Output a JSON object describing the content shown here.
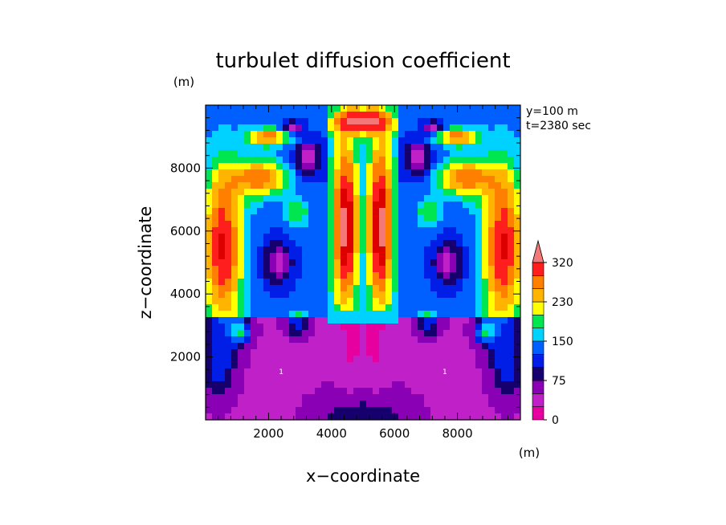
{
  "chart_data": {
    "type": "heatmap",
    "title": "turbulet diffusion coefficient",
    "xlabel": "x−coordinate",
    "ylabel": "z−coordinate",
    "x_unit": "(m)",
    "z_unit": "(m)",
    "annotations": [
      "y=100  m",
      "t=2380 sec"
    ],
    "xlim": [
      0,
      10000
    ],
    "zlim": [
      0,
      10000
    ],
    "x_ticks": [
      2000,
      4000,
      6000,
      8000
    ],
    "z_ticks": [
      2000,
      4000,
      6000,
      8000
    ],
    "x_tick_labels": [
      "2000",
      "4000",
      "6000",
      "8000"
    ],
    "z_tick_labels": [
      "2000",
      "4000",
      "6000",
      "8000"
    ],
    "contour_labels": [
      "1",
      "1"
    ],
    "colorbar": {
      "levels": [
        0,
        25,
        50,
        75,
        100,
        125,
        150,
        175,
        200,
        230,
        260,
        290,
        320
      ],
      "labels": [
        "0",
        "75",
        "150",
        "230",
        "320"
      ],
      "label_values": [
        0,
        75,
        150,
        230,
        320
      ],
      "colors": [
        "#e600a0",
        "#bf20c8",
        "#8a00b4",
        "#16006e",
        "#001ee6",
        "#0060ff",
        "#00d2ff",
        "#00e650",
        "#ffff00",
        "#ffb400",
        "#ff8000",
        "#ff1e1e",
        "#dc0000",
        "#f57878"
      ],
      "extend": "max"
    }
  }
}
